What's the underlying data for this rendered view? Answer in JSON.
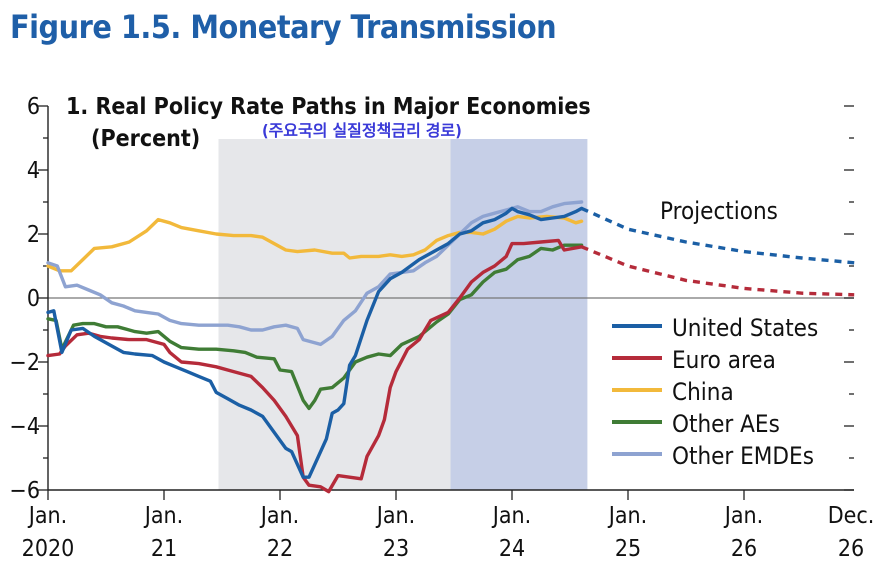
{
  "figure_title": "Figure 1.5.  Monetary Transmission",
  "chart_data": {
    "type": "line",
    "title": "1. Real Policy Rate Paths in Major Economies",
    "ylabel": "(Percent)",
    "note": "(주요국의 실질정책금리 경로)",
    "annotation": "Projections",
    "ylim": [
      -6,
      6
    ],
    "y_ticks": [
      "6",
      "4",
      "2",
      "0",
      "−2",
      "−4",
      "−6"
    ],
    "x_ticks": [
      {
        "top": "Jan.",
        "bottom": "2020"
      },
      {
        "top": "Jan.",
        "bottom": "21"
      },
      {
        "top": "Jan.",
        "bottom": "22"
      },
      {
        "top": "Jan.",
        "bottom": "23"
      },
      {
        "top": "Jan.",
        "bottom": "24"
      },
      {
        "top": "Jan.",
        "bottom": "25"
      },
      {
        "top": "Jan.",
        "bottom": "26"
      },
      {
        "top": "Dec.",
        "bottom": "26"
      }
    ],
    "x_unit": "years since Jan. 2020",
    "shaded_periods": [
      {
        "from": 1.47,
        "to": 3.47,
        "color": "#e6e7ea"
      },
      {
        "from": 3.47,
        "to": 4.65,
        "color": "#c6cfe7"
      }
    ],
    "legend_position": "bottom-right",
    "series": [
      {
        "name": "United States",
        "color": "#1b5fa5",
        "projection_color": "#1b5fa5",
        "values": [
          [
            0,
            -0.45
          ],
          [
            0.05,
            -0.4
          ],
          [
            0.12,
            -1.7
          ],
          [
            0.2,
            -1.0
          ],
          [
            0.3,
            -0.95
          ],
          [
            0.4,
            -1.2
          ],
          [
            0.55,
            -1.5
          ],
          [
            0.65,
            -1.7
          ],
          [
            0.75,
            -1.75
          ],
          [
            0.9,
            -1.8
          ],
          [
            1.0,
            -2.0
          ],
          [
            1.1,
            -2.15
          ],
          [
            1.2,
            -2.3
          ],
          [
            1.3,
            -2.45
          ],
          [
            1.4,
            -2.6
          ],
          [
            1.45,
            -2.95
          ],
          [
            1.55,
            -3.15
          ],
          [
            1.65,
            -3.35
          ],
          [
            1.75,
            -3.5
          ],
          [
            1.85,
            -3.7
          ],
          [
            1.95,
            -4.2
          ],
          [
            2.05,
            -4.7
          ],
          [
            2.1,
            -4.8
          ],
          [
            2.2,
            -5.6
          ],
          [
            2.25,
            -5.6
          ],
          [
            2.3,
            -5.2
          ],
          [
            2.4,
            -4.4
          ],
          [
            2.45,
            -3.6
          ],
          [
            2.5,
            -3.5
          ],
          [
            2.55,
            -3.3
          ],
          [
            2.6,
            -2.1
          ],
          [
            2.65,
            -1.8
          ],
          [
            2.75,
            -0.7
          ],
          [
            2.85,
            0.2
          ],
          [
            2.95,
            0.6
          ],
          [
            3.05,
            0.8
          ],
          [
            3.2,
            1.2
          ],
          [
            3.35,
            1.5
          ],
          [
            3.45,
            1.7
          ],
          [
            3.55,
            2.0
          ],
          [
            3.65,
            2.1
          ],
          [
            3.75,
            2.35
          ],
          [
            3.85,
            2.45
          ],
          [
            3.95,
            2.65
          ],
          [
            4.0,
            2.8
          ],
          [
            4.05,
            2.7
          ],
          [
            4.15,
            2.6
          ],
          [
            4.25,
            2.45
          ],
          [
            4.35,
            2.5
          ],
          [
            4.45,
            2.55
          ],
          [
            4.55,
            2.7
          ],
          [
            4.6,
            2.8
          ]
        ],
        "projection": [
          [
            4.6,
            2.8
          ],
          [
            5.0,
            2.15
          ],
          [
            5.5,
            1.75
          ],
          [
            6.0,
            1.45
          ],
          [
            6.5,
            1.25
          ],
          [
            6.95,
            1.1
          ]
        ]
      },
      {
        "name": "Euro area",
        "color": "#b52b3a",
        "projection_color": "#b52b3a",
        "values": [
          [
            0,
            -1.8
          ],
          [
            0.1,
            -1.75
          ],
          [
            0.15,
            -1.5
          ],
          [
            0.25,
            -1.15
          ],
          [
            0.35,
            -1.1
          ],
          [
            0.45,
            -1.2
          ],
          [
            0.55,
            -1.25
          ],
          [
            0.7,
            -1.3
          ],
          [
            0.85,
            -1.3
          ],
          [
            1.0,
            -1.45
          ],
          [
            1.05,
            -1.7
          ],
          [
            1.15,
            -2.0
          ],
          [
            1.3,
            -2.05
          ],
          [
            1.45,
            -2.15
          ],
          [
            1.6,
            -2.3
          ],
          [
            1.75,
            -2.45
          ],
          [
            1.85,
            -2.8
          ],
          [
            1.95,
            -3.2
          ],
          [
            2.05,
            -3.7
          ],
          [
            2.15,
            -4.3
          ],
          [
            2.2,
            -5.6
          ],
          [
            2.25,
            -5.85
          ],
          [
            2.35,
            -5.9
          ],
          [
            2.42,
            -6.05
          ],
          [
            2.5,
            -5.55
          ],
          [
            2.6,
            -5.6
          ],
          [
            2.7,
            -5.65
          ],
          [
            2.75,
            -4.95
          ],
          [
            2.85,
            -4.3
          ],
          [
            2.9,
            -3.8
          ],
          [
            2.95,
            -2.8
          ],
          [
            3.0,
            -2.3
          ],
          [
            3.1,
            -1.6
          ],
          [
            3.2,
            -1.3
          ],
          [
            3.3,
            -0.7
          ],
          [
            3.45,
            -0.45
          ],
          [
            3.55,
            0.0
          ],
          [
            3.65,
            0.5
          ],
          [
            3.75,
            0.8
          ],
          [
            3.85,
            1.0
          ],
          [
            3.95,
            1.3
          ],
          [
            4.0,
            1.7
          ],
          [
            4.1,
            1.7
          ],
          [
            4.25,
            1.75
          ],
          [
            4.4,
            1.8
          ],
          [
            4.45,
            1.5
          ],
          [
            4.6,
            1.6
          ]
        ],
        "projection": [
          [
            4.6,
            1.6
          ],
          [
            5.0,
            1.0
          ],
          [
            5.5,
            0.55
          ],
          [
            6.0,
            0.3
          ],
          [
            6.5,
            0.15
          ],
          [
            6.95,
            0.1
          ]
        ]
      },
      {
        "name": "China",
        "color": "#f2b93b",
        "values": [
          [
            0,
            1.0
          ],
          [
            0.1,
            0.85
          ],
          [
            0.2,
            0.85
          ],
          [
            0.3,
            1.2
          ],
          [
            0.4,
            1.55
          ],
          [
            0.55,
            1.6
          ],
          [
            0.7,
            1.75
          ],
          [
            0.85,
            2.1
          ],
          [
            0.95,
            2.45
          ],
          [
            1.05,
            2.35
          ],
          [
            1.15,
            2.2
          ],
          [
            1.3,
            2.1
          ],
          [
            1.45,
            2.0
          ],
          [
            1.6,
            1.95
          ],
          [
            1.75,
            1.95
          ],
          [
            1.85,
            1.9
          ],
          [
            1.95,
            1.7
          ],
          [
            2.05,
            1.5
          ],
          [
            2.15,
            1.45
          ],
          [
            2.3,
            1.5
          ],
          [
            2.45,
            1.4
          ],
          [
            2.55,
            1.4
          ],
          [
            2.6,
            1.25
          ],
          [
            2.7,
            1.3
          ],
          [
            2.85,
            1.3
          ],
          [
            2.95,
            1.35
          ],
          [
            3.05,
            1.3
          ],
          [
            3.15,
            1.35
          ],
          [
            3.25,
            1.5
          ],
          [
            3.35,
            1.8
          ],
          [
            3.45,
            1.95
          ],
          [
            3.55,
            2.05
          ],
          [
            3.65,
            2.05
          ],
          [
            3.75,
            2.0
          ],
          [
            3.85,
            2.15
          ],
          [
            3.95,
            2.4
          ],
          [
            4.05,
            2.55
          ],
          [
            4.15,
            2.5
          ],
          [
            4.3,
            2.55
          ],
          [
            4.45,
            2.5
          ],
          [
            4.55,
            2.35
          ],
          [
            4.6,
            2.4
          ]
        ]
      },
      {
        "name": "Other AEs",
        "color": "#3f7c35",
        "values": [
          [
            0,
            -0.65
          ],
          [
            0.07,
            -0.7
          ],
          [
            0.12,
            -1.6
          ],
          [
            0.22,
            -0.85
          ],
          [
            0.3,
            -0.8
          ],
          [
            0.4,
            -0.8
          ],
          [
            0.5,
            -0.9
          ],
          [
            0.6,
            -0.9
          ],
          [
            0.75,
            -1.05
          ],
          [
            0.85,
            -1.1
          ],
          [
            0.95,
            -1.05
          ],
          [
            1.05,
            -1.35
          ],
          [
            1.15,
            -1.55
          ],
          [
            1.3,
            -1.6
          ],
          [
            1.45,
            -1.6
          ],
          [
            1.6,
            -1.65
          ],
          [
            1.7,
            -1.7
          ],
          [
            1.8,
            -1.85
          ],
          [
            1.95,
            -1.9
          ],
          [
            2.0,
            -2.25
          ],
          [
            2.1,
            -2.3
          ],
          [
            2.2,
            -3.2
          ],
          [
            2.25,
            -3.45
          ],
          [
            2.3,
            -3.2
          ],
          [
            2.35,
            -2.85
          ],
          [
            2.45,
            -2.8
          ],
          [
            2.55,
            -2.5
          ],
          [
            2.65,
            -2.0
          ],
          [
            2.75,
            -1.85
          ],
          [
            2.85,
            -1.75
          ],
          [
            2.95,
            -1.8
          ],
          [
            3.05,
            -1.45
          ],
          [
            3.2,
            -1.2
          ],
          [
            3.35,
            -0.75
          ],
          [
            3.45,
            -0.5
          ],
          [
            3.55,
            -0.05
          ],
          [
            3.65,
            0.1
          ],
          [
            3.75,
            0.5
          ],
          [
            3.85,
            0.8
          ],
          [
            3.95,
            0.9
          ],
          [
            4.05,
            1.2
          ],
          [
            4.15,
            1.3
          ],
          [
            4.25,
            1.55
          ],
          [
            4.35,
            1.5
          ],
          [
            4.45,
            1.65
          ],
          [
            4.6,
            1.65
          ]
        ]
      },
      {
        "name": "Other EMDEs",
        "color": "#8ea3d1",
        "values": [
          [
            0,
            1.1
          ],
          [
            0.08,
            1.0
          ],
          [
            0.15,
            0.35
          ],
          [
            0.25,
            0.4
          ],
          [
            0.35,
            0.25
          ],
          [
            0.45,
            0.1
          ],
          [
            0.55,
            -0.15
          ],
          [
            0.65,
            -0.25
          ],
          [
            0.75,
            -0.4
          ],
          [
            0.85,
            -0.45
          ],
          [
            0.95,
            -0.5
          ],
          [
            1.05,
            -0.7
          ],
          [
            1.15,
            -0.8
          ],
          [
            1.3,
            -0.85
          ],
          [
            1.45,
            -0.85
          ],
          [
            1.55,
            -0.85
          ],
          [
            1.65,
            -0.9
          ],
          [
            1.75,
            -1.0
          ],
          [
            1.85,
            -1.0
          ],
          [
            1.95,
            -0.9
          ],
          [
            2.05,
            -0.85
          ],
          [
            2.15,
            -0.95
          ],
          [
            2.2,
            -1.3
          ],
          [
            2.35,
            -1.45
          ],
          [
            2.45,
            -1.2
          ],
          [
            2.55,
            -0.7
          ],
          [
            2.65,
            -0.4
          ],
          [
            2.75,
            0.15
          ],
          [
            2.85,
            0.35
          ],
          [
            2.95,
            0.75
          ],
          [
            3.05,
            0.8
          ],
          [
            3.15,
            0.85
          ],
          [
            3.25,
            1.1
          ],
          [
            3.35,
            1.3
          ],
          [
            3.45,
            1.65
          ],
          [
            3.55,
            2.0
          ],
          [
            3.65,
            2.35
          ],
          [
            3.75,
            2.55
          ],
          [
            3.85,
            2.65
          ],
          [
            3.95,
            2.75
          ],
          [
            4.05,
            2.85
          ],
          [
            4.15,
            2.7
          ],
          [
            4.25,
            2.7
          ],
          [
            4.35,
            2.85
          ],
          [
            4.45,
            2.95
          ],
          [
            4.6,
            3.0
          ]
        ]
      }
    ]
  }
}
